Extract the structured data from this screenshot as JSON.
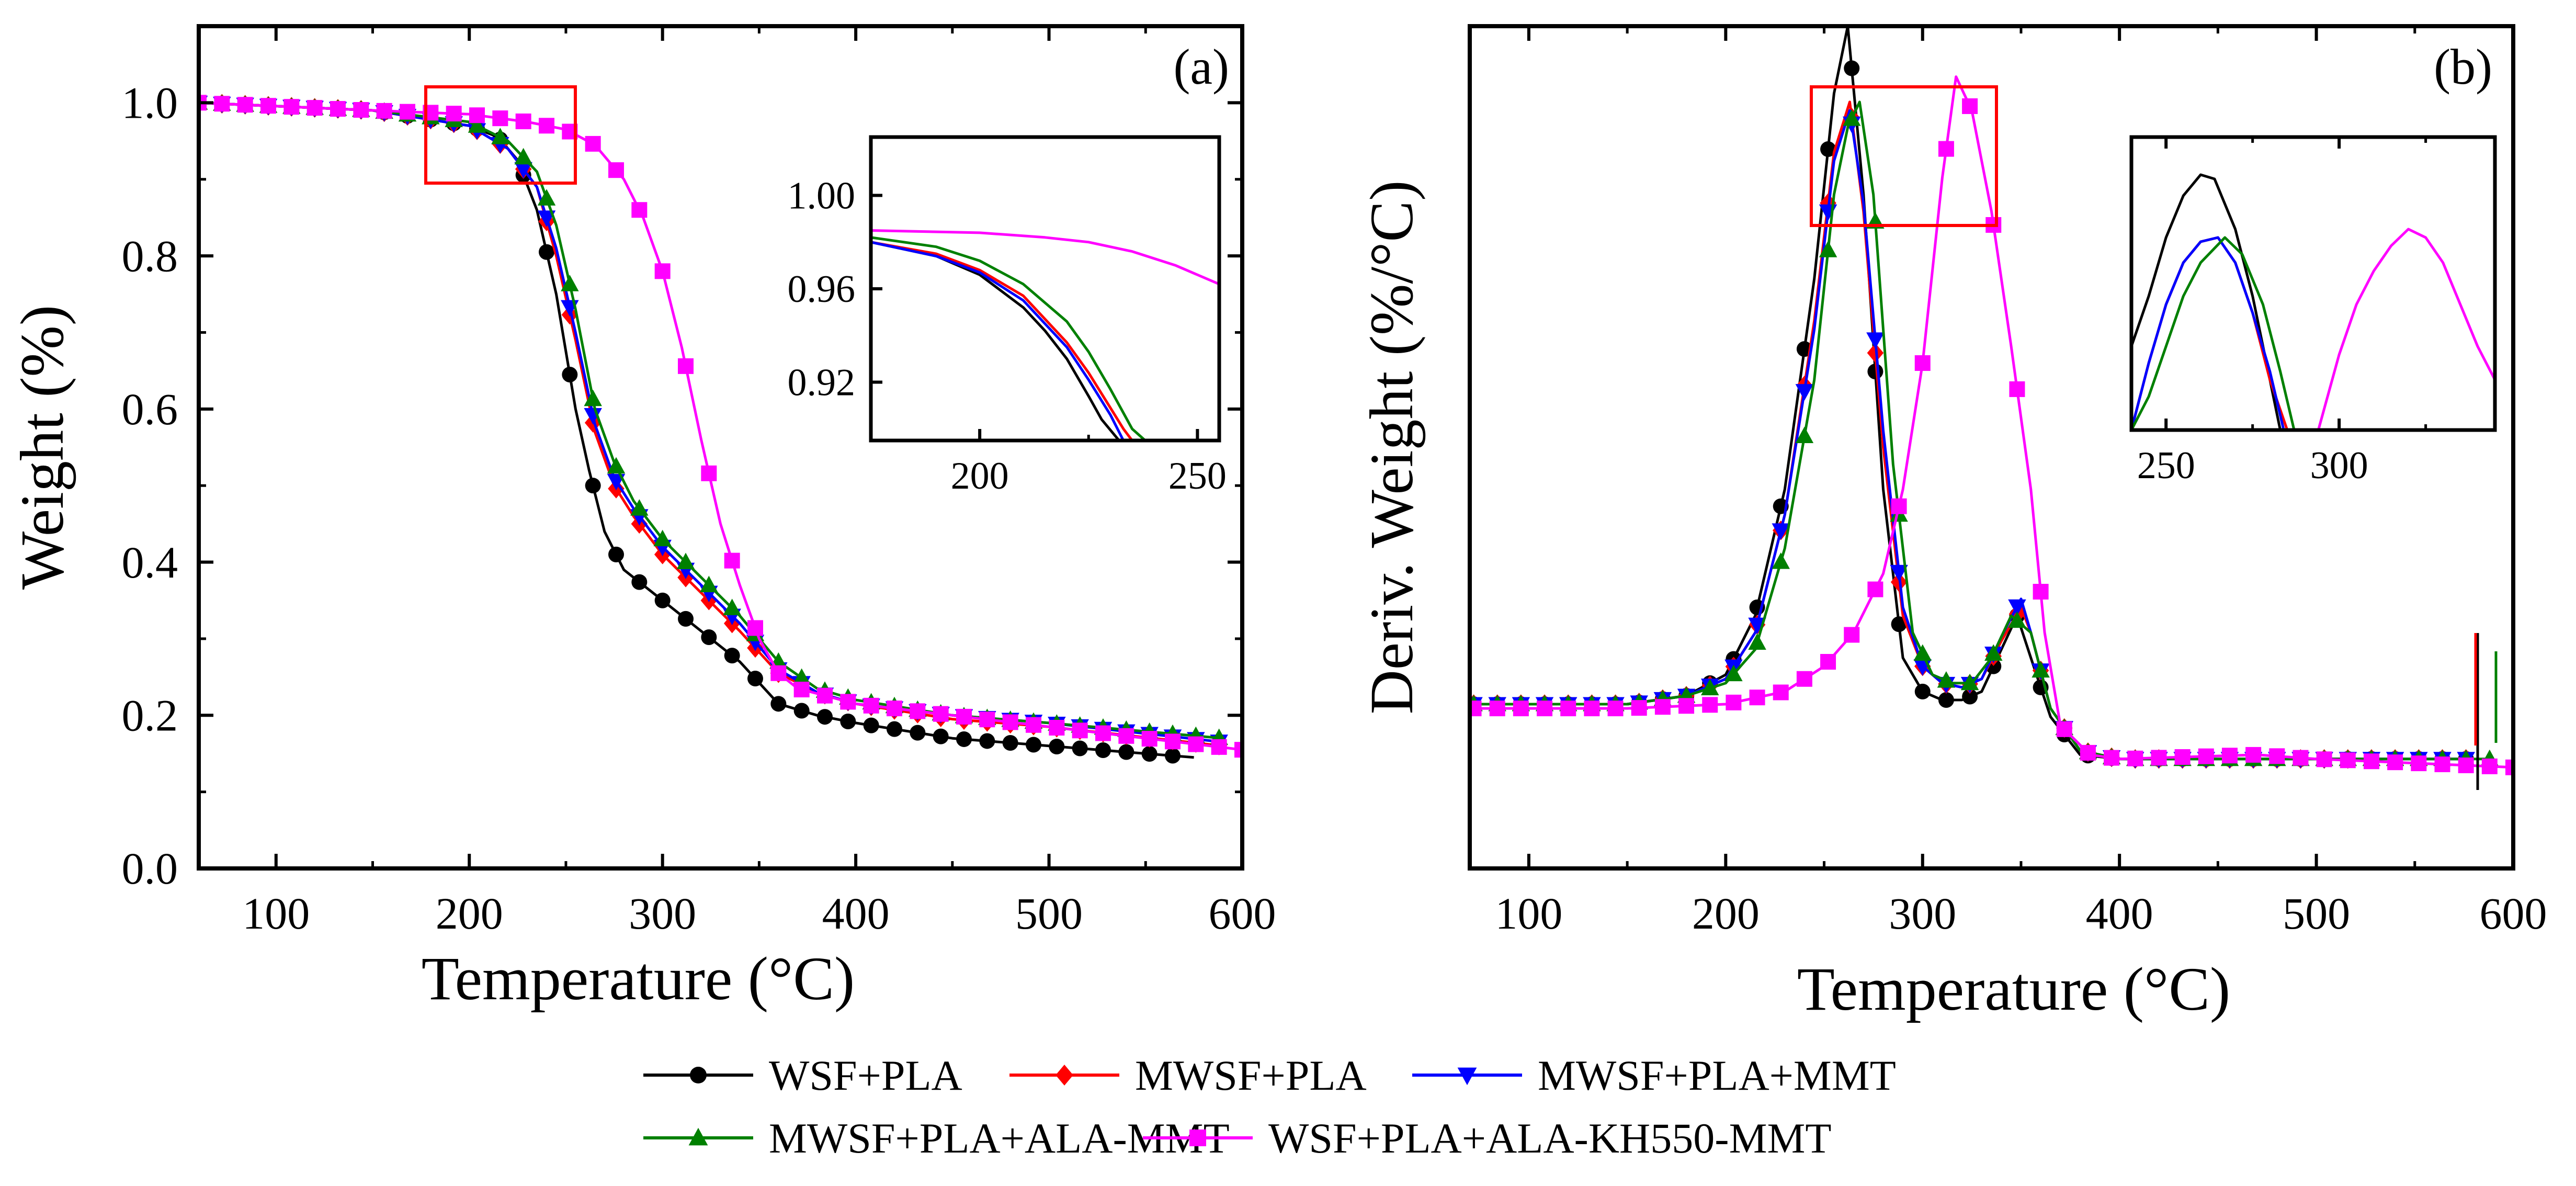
{
  "figure": {
    "x_label_a": "Temperature (°C)",
    "x_label_b": "Temperature (°C)",
    "y_label_a": "Weight (%)",
    "y_label_b": "Deriv. Weight (%/°C)",
    "panel_a": "(a)",
    "panel_b": "(b)"
  },
  "colors": {
    "WSF+PLA": "#000000",
    "MWSF+PLA": "#ff0000",
    "MWSF+PLA+MMT": "#0000ff",
    "MWSF+PLA+ALA-MMT": "#008000",
    "WSF+PLA+ALA-KH550-MMT": "#ff00ff",
    "box": "#ff0000"
  },
  "legend": [
    {
      "name": "WSF+PLA",
      "marker": "circle"
    },
    {
      "name": "MWSF+PLA",
      "marker": "diamond"
    },
    {
      "name": "MWSF+PLA+MMT",
      "marker": "triangle-down"
    },
    {
      "name": "MWSF+PLA+ALA-MMT",
      "marker": "triangle-up"
    },
    {
      "name": "WSF+PLA+ALA-KH550-MMT",
      "marker": "square"
    }
  ],
  "chart_data": [
    {
      "id": "a",
      "type": "line",
      "title": "(a)",
      "xlabel": "Temperature (°C)",
      "ylabel": "Weight (%)",
      "xlim": [
        60,
        600
      ],
      "ylim": [
        0,
        1.1
      ],
      "xticks": [
        100,
        200,
        300,
        400,
        500,
        600
      ],
      "yticks": [
        0.0,
        0.2,
        0.4,
        0.6,
        0.8,
        1.0
      ],
      "ytick_labels": [
        "0.0",
        "0.2",
        "0.4",
        "0.6",
        "0.8",
        "1.0"
      ],
      "series": [
        {
          "name": "WSF+PLA",
          "x": [
            60,
            150,
            200,
            215,
            225,
            235,
            245,
            255,
            262,
            270,
            280,
            300,
            320,
            340,
            360,
            380,
            400,
            450,
            500,
            575
          ],
          "y": [
            1.0,
            0.99,
            0.97,
            0.955,
            0.925,
            0.86,
            0.75,
            0.6,
            0.52,
            0.44,
            0.39,
            0.35,
            0.31,
            0.27,
            0.215,
            0.2,
            0.19,
            0.17,
            0.16,
            0.145
          ]
        },
        {
          "name": "MWSF+PLA",
          "x": [
            60,
            150,
            200,
            220,
            235,
            245,
            255,
            265,
            275,
            285,
            300,
            320,
            340,
            360,
            380,
            400,
            450,
            500,
            590
          ],
          "y": [
            1.0,
            0.99,
            0.97,
            0.94,
            0.89,
            0.8,
            0.69,
            0.57,
            0.5,
            0.46,
            0.41,
            0.36,
            0.31,
            0.255,
            0.23,
            0.215,
            0.195,
            0.185,
            0.16
          ]
        },
        {
          "name": "MWSF+PLA+MMT",
          "x": [
            60,
            150,
            200,
            220,
            235,
            245,
            255,
            265,
            275,
            285,
            300,
            320,
            340,
            360,
            380,
            400,
            450,
            500,
            590
          ],
          "y": [
            1.0,
            0.99,
            0.97,
            0.94,
            0.89,
            0.81,
            0.7,
            0.58,
            0.51,
            0.47,
            0.42,
            0.37,
            0.32,
            0.26,
            0.23,
            0.215,
            0.2,
            0.19,
            0.165
          ]
        },
        {
          "name": "MWSF+PLA+ALA-MMT",
          "x": [
            60,
            150,
            200,
            220,
            235,
            245,
            255,
            265,
            275,
            285,
            300,
            320,
            340,
            360,
            380,
            400,
            450,
            500,
            590
          ],
          "y": [
            1.0,
            0.99,
            0.975,
            0.95,
            0.91,
            0.84,
            0.73,
            0.6,
            0.53,
            0.48,
            0.43,
            0.38,
            0.33,
            0.27,
            0.235,
            0.22,
            0.2,
            0.19,
            0.17
          ]
        },
        {
          "name": "WSF+PLA+ALA-KH550-MMT",
          "x": [
            60,
            150,
            200,
            230,
            250,
            265,
            280,
            290,
            300,
            310,
            320,
            330,
            340,
            350,
            360,
            370,
            400,
            450,
            500,
            600
          ],
          "y": [
            1.0,
            0.99,
            0.985,
            0.975,
            0.965,
            0.945,
            0.9,
            0.85,
            0.78,
            0.68,
            0.56,
            0.45,
            0.37,
            0.3,
            0.255,
            0.235,
            0.215,
            0.2,
            0.185,
            0.155
          ]
        }
      ],
      "inset": {
        "xlim": [
          175,
          255
        ],
        "ylim": [
          0.895,
          1.025
        ],
        "xticks": [
          200,
          250
        ],
        "yticks": [
          0.92,
          0.96,
          1.0
        ],
        "ytick_labels": [
          "0.92",
          "0.96",
          "1.00"
        ],
        "series": [
          {
            "name": "WSF+PLA",
            "x": [
              175,
              190,
              200,
              210,
              215,
              220,
              225,
              228,
              232
            ],
            "y": [
              0.98,
              0.974,
              0.966,
              0.952,
              0.942,
              0.93,
              0.914,
              0.904,
              0.895
            ]
          },
          {
            "name": "MWSF+PLA",
            "x": [
              175,
              190,
              200,
              210,
              220,
              225,
              230,
              233,
              235
            ],
            "y": [
              0.98,
              0.975,
              0.968,
              0.957,
              0.937,
              0.924,
              0.909,
              0.9,
              0.895
            ]
          },
          {
            "name": "MWSF+PLA+MMT",
            "x": [
              175,
              190,
              200,
              210,
              220,
              225,
              230,
              233
            ],
            "y": [
              0.98,
              0.974,
              0.967,
              0.955,
              0.935,
              0.921,
              0.906,
              0.895
            ]
          },
          {
            "name": "MWSF+PLA+ALA-MMT",
            "x": [
              175,
              190,
              200,
              210,
              220,
              225,
              230,
              235,
              238
            ],
            "y": [
              0.982,
              0.978,
              0.972,
              0.962,
              0.946,
              0.933,
              0.917,
              0.9,
              0.895
            ]
          },
          {
            "name": "WSF+PLA+ALA-KH550-MMT",
            "x": [
              175,
              200,
              215,
              225,
              235,
              245,
              255
            ],
            "y": [
              0.985,
              0.984,
              0.982,
              0.98,
              0.976,
              0.97,
              0.962
            ]
          }
        ]
      }
    },
    {
      "id": "b",
      "type": "line",
      "title": "(b)",
      "xlabel": "Temperature (°C)",
      "ylabel": "Deriv. Weight (%/°C)",
      "xlim": [
        70,
        600
      ],
      "ylim": [
        0,
        100
      ],
      "xticks": [
        100,
        200,
        300,
        400,
        500,
        600
      ],
      "yticks": [],
      "series": [
        {
          "name": "WSF+PLA",
          "x": [
            70,
            150,
            180,
            200,
            215,
            230,
            245,
            255,
            262,
            270,
            280,
            290,
            300,
            310,
            320,
            330,
            340,
            348,
            355,
            365,
            380,
            400,
            500,
            580
          ],
          "y": [
            19.5,
            19.5,
            20.5,
            23,
            30,
            45,
            70,
            92,
            100,
            80,
            45,
            25,
            21,
            20,
            20,
            21,
            26,
            30,
            25,
            18,
            13.5,
            13,
            13,
            13
          ]
        },
        {
          "name": "MWSF+PLA",
          "x": [
            70,
            150,
            180,
            200,
            215,
            230,
            245,
            255,
            263,
            270,
            280,
            290,
            300,
            310,
            320,
            330,
            340,
            350,
            355,
            365,
            380,
            400,
            500,
            580
          ],
          "y": [
            19.5,
            19.5,
            20.5,
            22.5,
            28,
            42,
            65,
            85,
            91,
            78,
            50,
            30,
            24,
            22,
            21.5,
            22.5,
            27,
            31,
            28,
            19,
            14,
            13,
            13,
            13
          ]
        },
        {
          "name": "MWSF+PLA+MMT",
          "x": [
            70,
            150,
            180,
            200,
            215,
            230,
            245,
            255,
            263,
            270,
            280,
            290,
            300,
            310,
            320,
            330,
            340,
            350,
            355,
            365,
            380,
            400,
            500,
            580
          ],
          "y": [
            19.5,
            19.5,
            20.5,
            22.5,
            28,
            42,
            64,
            84,
            90,
            79,
            52,
            31,
            24,
            22,
            21.5,
            22.5,
            27.5,
            32,
            28,
            19,
            14,
            13,
            13,
            13
          ]
        },
        {
          "name": "MWSF+PLA+ALA-MMT",
          "x": [
            70,
            150,
            180,
            200,
            215,
            230,
            245,
            255,
            262,
            268,
            275,
            285,
            295,
            305,
            315,
            325,
            335,
            345,
            355,
            365,
            380,
            400,
            500,
            590
          ],
          "y": [
            19.5,
            19.5,
            20.5,
            22,
            26,
            38,
            58,
            80,
            88,
            91,
            80,
            48,
            28,
            23,
            22,
            22,
            25,
            30,
            28,
            19,
            14,
            13,
            13,
            13
          ]
        },
        {
          "name": "WSF+PLA+ALA-KH550-MMT",
          "x": [
            70,
            150,
            200,
            230,
            250,
            265,
            280,
            290,
            300,
            310,
            317,
            325,
            335,
            345,
            355,
            362,
            370,
            385,
            400,
            470,
            500,
            600
          ],
          "y": [
            19,
            19,
            19.5,
            21,
            24,
            28,
            35,
            45,
            60,
            82,
            94,
            90,
            78,
            62,
            45,
            28,
            17,
            13.5,
            13,
            13.5,
            13,
            12
          ]
        }
      ],
      "inset": {
        "xlim": [
          240,
          345
        ],
        "ylim": [
          70,
          105
        ],
        "xticks": [
          250,
          300
        ],
        "yticks": [],
        "series": [
          {
            "name": "WSF+PLA",
            "x": [
              240,
              245,
              250,
              255,
              260,
              264,
              270,
              275,
              280,
              283
            ],
            "y": [
              80,
              86,
              93,
              98,
              100.5,
              100,
              94,
              86,
              76,
              70
            ]
          },
          {
            "name": "MWSF+PLA",
            "x": [
              240,
              245,
              250,
              255,
              260,
              265,
              270,
              275,
              280,
              285
            ],
            "y": [
              70,
              78,
              85,
              90,
              92.5,
              93,
              90,
              84,
              76,
              70
            ]
          },
          {
            "name": "MWSF+PLA+MMT",
            "x": [
              240,
              245,
              250,
              255,
              260,
              265,
              270,
              275,
              280,
              284
            ],
            "y": [
              70,
              78,
              85,
              90,
              92.5,
              93,
              90,
              84,
              77,
              70
            ]
          },
          {
            "name": "MWSF+PLA+ALA-MMT",
            "x": [
              240,
              245,
              250,
              255,
              260,
              267,
              272,
              278,
              283,
              287
            ],
            "y": [
              70,
              74,
              80,
              86,
              90,
              93,
              91,
              85,
              77,
              70
            ]
          },
          {
            "name": "WSF+PLA+ALA-KH550-MMT",
            "x": [
              294,
              300,
              305,
              310,
              315,
              320,
              325,
              330,
              335,
              340,
              345
            ],
            "y": [
              70,
              79,
              85,
              89,
              92,
              94,
              93,
              90,
              85,
              80,
              76
            ]
          }
        ]
      }
    }
  ]
}
